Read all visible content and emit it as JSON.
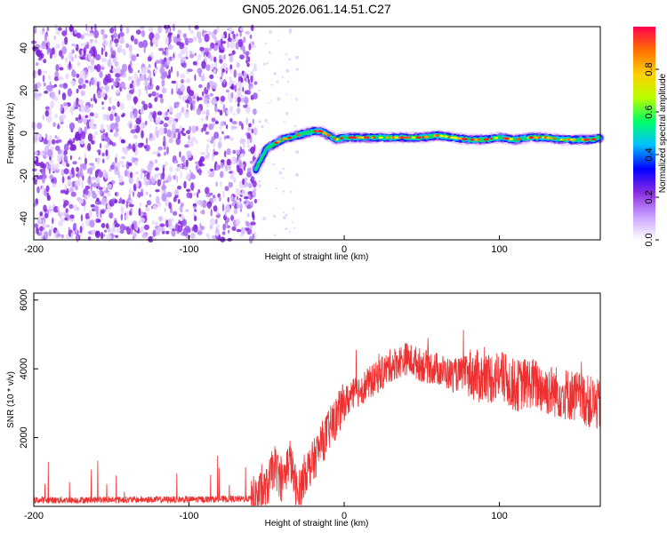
{
  "title": "GN05.2026.061.14.51.C27",
  "chart_data": [
    {
      "type": "heatmap",
      "title": "GN05.2026.061.14.51.C27",
      "xlabel": "Height of straight line (km)",
      "ylabel": "Frequency (Hz)",
      "xlim": [
        -200,
        165
      ],
      "ylim": [
        -50,
        50
      ],
      "xticks": [
        -200,
        -100,
        0,
        100
      ],
      "yticks": [
        -40,
        -20,
        0,
        20,
        40
      ],
      "noise_region_x": [
        -200,
        -57
      ],
      "signal_trace": {
        "x": [
          -57,
          -50,
          -45,
          -40,
          -35,
          -30,
          -25,
          -20,
          -15,
          -10,
          -5,
          0,
          10,
          20,
          30,
          40,
          50,
          60,
          70,
          80,
          90,
          100,
          110,
          120,
          130,
          140,
          150,
          160,
          165
        ],
        "y": [
          -17,
          -7,
          -5,
          -3,
          -2,
          -1,
          0,
          1,
          1,
          -1,
          -3,
          -2,
          -2,
          -2,
          -2,
          -2,
          -2,
          -1,
          -2,
          -3,
          -3,
          -2,
          -3,
          -2,
          -2,
          -3,
          -3,
          -3,
          -2
        ]
      },
      "colorbar": {
        "label": "Normalized spectral amplitude",
        "range": [
          0.0,
          1.0
        ],
        "ticks": [
          "0.0",
          "0.2",
          "0.4",
          "0.6",
          "0.8"
        ],
        "colors": [
          "#ffffff",
          "#c8a0ff",
          "#8a2be2",
          "#0000ff",
          "#00bfff",
          "#00ff66",
          "#b8ff00",
          "#ffd000",
          "#ff7000",
          "#ff0050"
        ]
      }
    },
    {
      "type": "line",
      "xlabel": "Height of straight line (km)",
      "ylabel": "SNR (10 * v/v)",
      "xlim": [
        -200,
        165
      ],
      "ylim": [
        0,
        6200
      ],
      "xticks": [
        -200,
        -100,
        0,
        100
      ],
      "yticks": [
        2000,
        4000,
        6000
      ],
      "color": "#ef3030",
      "series": [
        {
          "name": "SNR",
          "x": [
            -200,
            -100,
            -60,
            -55,
            -50,
            -45,
            -40,
            -35,
            -30,
            -25,
            -20,
            -15,
            -10,
            -5,
            0,
            10,
            20,
            30,
            40,
            50,
            60,
            70,
            80,
            90,
            100,
            110,
            120,
            130,
            140,
            150,
            160,
            165
          ],
          "y": [
            180,
            200,
            220,
            350,
            500,
            1200,
            700,
            1400,
            300,
            1000,
            1300,
            1800,
            2200,
            2600,
            3000,
            3400,
            3700,
            4100,
            4300,
            4100,
            4000,
            3800,
            3900,
            3700,
            3800,
            3500,
            3600,
            3400,
            3300,
            3200,
            3000,
            2900
          ]
        }
      ]
    }
  ]
}
